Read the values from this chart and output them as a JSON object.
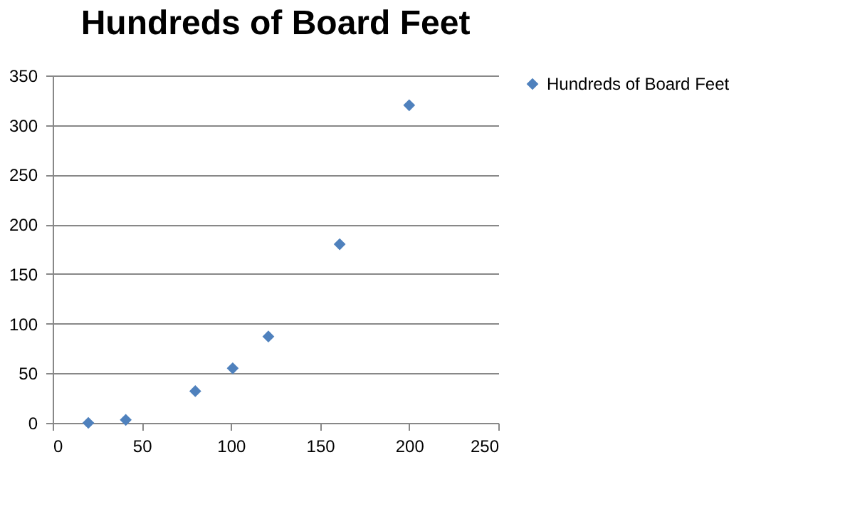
{
  "chart_data": {
    "type": "scatter",
    "title": "Hundreds of Board Feet",
    "x": [
      20,
      41,
      80,
      101,
      121,
      161,
      200
    ],
    "series": [
      {
        "name": "Hundreds of Board Feet",
        "color": "#4f81bd",
        "values": [
          0,
          3,
          32,
          55,
          87,
          180,
          320
        ]
      }
    ],
    "xlim": [
      0,
      250
    ],
    "xticks": [
      0,
      50,
      100,
      150,
      200,
      250
    ],
    "ylim": [
      0,
      350
    ],
    "yticks": [
      0,
      50,
      100,
      150,
      200,
      250,
      300,
      350
    ],
    "grid": "y",
    "legend": "right",
    "marker": "diamond"
  }
}
